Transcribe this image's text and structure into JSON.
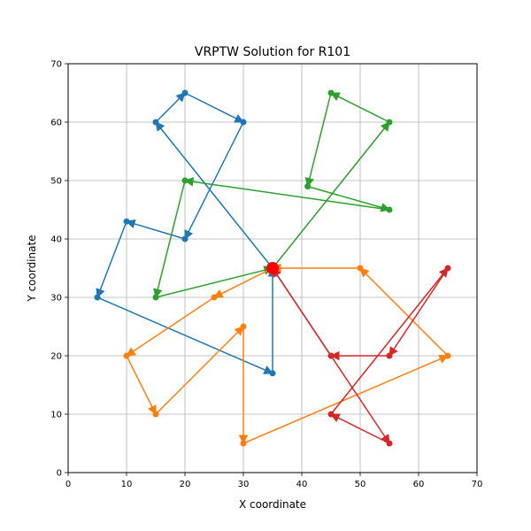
{
  "chart_data": {
    "type": "line",
    "title": "VRPTW Solution for R101",
    "xlabel": "X coordinate",
    "ylabel": "Y coordinate",
    "xlim": [
      0,
      70
    ],
    "ylim": [
      0,
      70
    ],
    "xticks": [
      "0",
      "10",
      "20",
      "30",
      "40",
      "50",
      "60",
      "70"
    ],
    "yticks": [
      "0",
      "10",
      "20",
      "30",
      "40",
      "50",
      "60",
      "70"
    ],
    "grid": true,
    "depot": {
      "x": 35,
      "y": 35,
      "color": "#ff0000"
    },
    "series": [
      {
        "color": "#1f77b4",
        "points": [
          [
            35,
            35
          ],
          [
            15,
            60
          ],
          [
            20,
            65
          ],
          [
            30,
            60
          ],
          [
            20,
            40
          ],
          [
            10,
            43
          ],
          [
            5,
            30
          ],
          [
            35,
            17
          ],
          [
            35,
            35
          ]
        ]
      },
      {
        "color": "#2ca02c",
        "points": [
          [
            35,
            35
          ],
          [
            55,
            60
          ],
          [
            45,
            65
          ],
          [
            41,
            49
          ],
          [
            55,
            45
          ],
          [
            20,
            50
          ],
          [
            15,
            30
          ],
          [
            35,
            35
          ]
        ]
      },
      {
        "color": "#ff7f0e",
        "points": [
          [
            35,
            35
          ],
          [
            25,
            30
          ],
          [
            10,
            20
          ],
          [
            15,
            10
          ],
          [
            30,
            25
          ],
          [
            30,
            5
          ],
          [
            65,
            20
          ],
          [
            50,
            35
          ],
          [
            35,
            35
          ]
        ]
      },
      {
        "color": "#d62728",
        "points": [
          [
            35,
            35
          ],
          [
            55,
            5
          ],
          [
            45,
            10
          ],
          [
            65,
            35
          ],
          [
            55,
            20
          ],
          [
            45,
            20
          ],
          [
            35,
            35
          ]
        ]
      }
    ]
  }
}
